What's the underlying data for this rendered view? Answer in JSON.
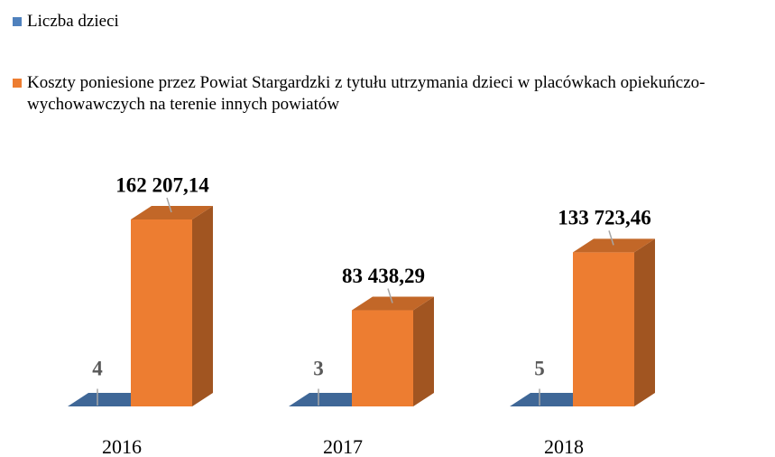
{
  "chart_data": {
    "type": "bar3d",
    "categories": [
      "2016",
      "2017",
      "2018"
    ],
    "series": [
      {
        "name": "Liczba dzieci",
        "color": "#4f81bd",
        "values": [
          4,
          3,
          5
        ]
      },
      {
        "name": "Koszty poniesione przez Powiat Stargardzki z tytułu utrzymania dzieci w placówkach opiekuńczo-wychowawczych na terenie innych powiatów",
        "color": "#ed7d31",
        "values": [
          162207.14,
          83438.29,
          133723.46
        ],
        "value_labels": [
          "162 207,14",
          "83 438,29",
          "133 723,46"
        ]
      }
    ]
  }
}
